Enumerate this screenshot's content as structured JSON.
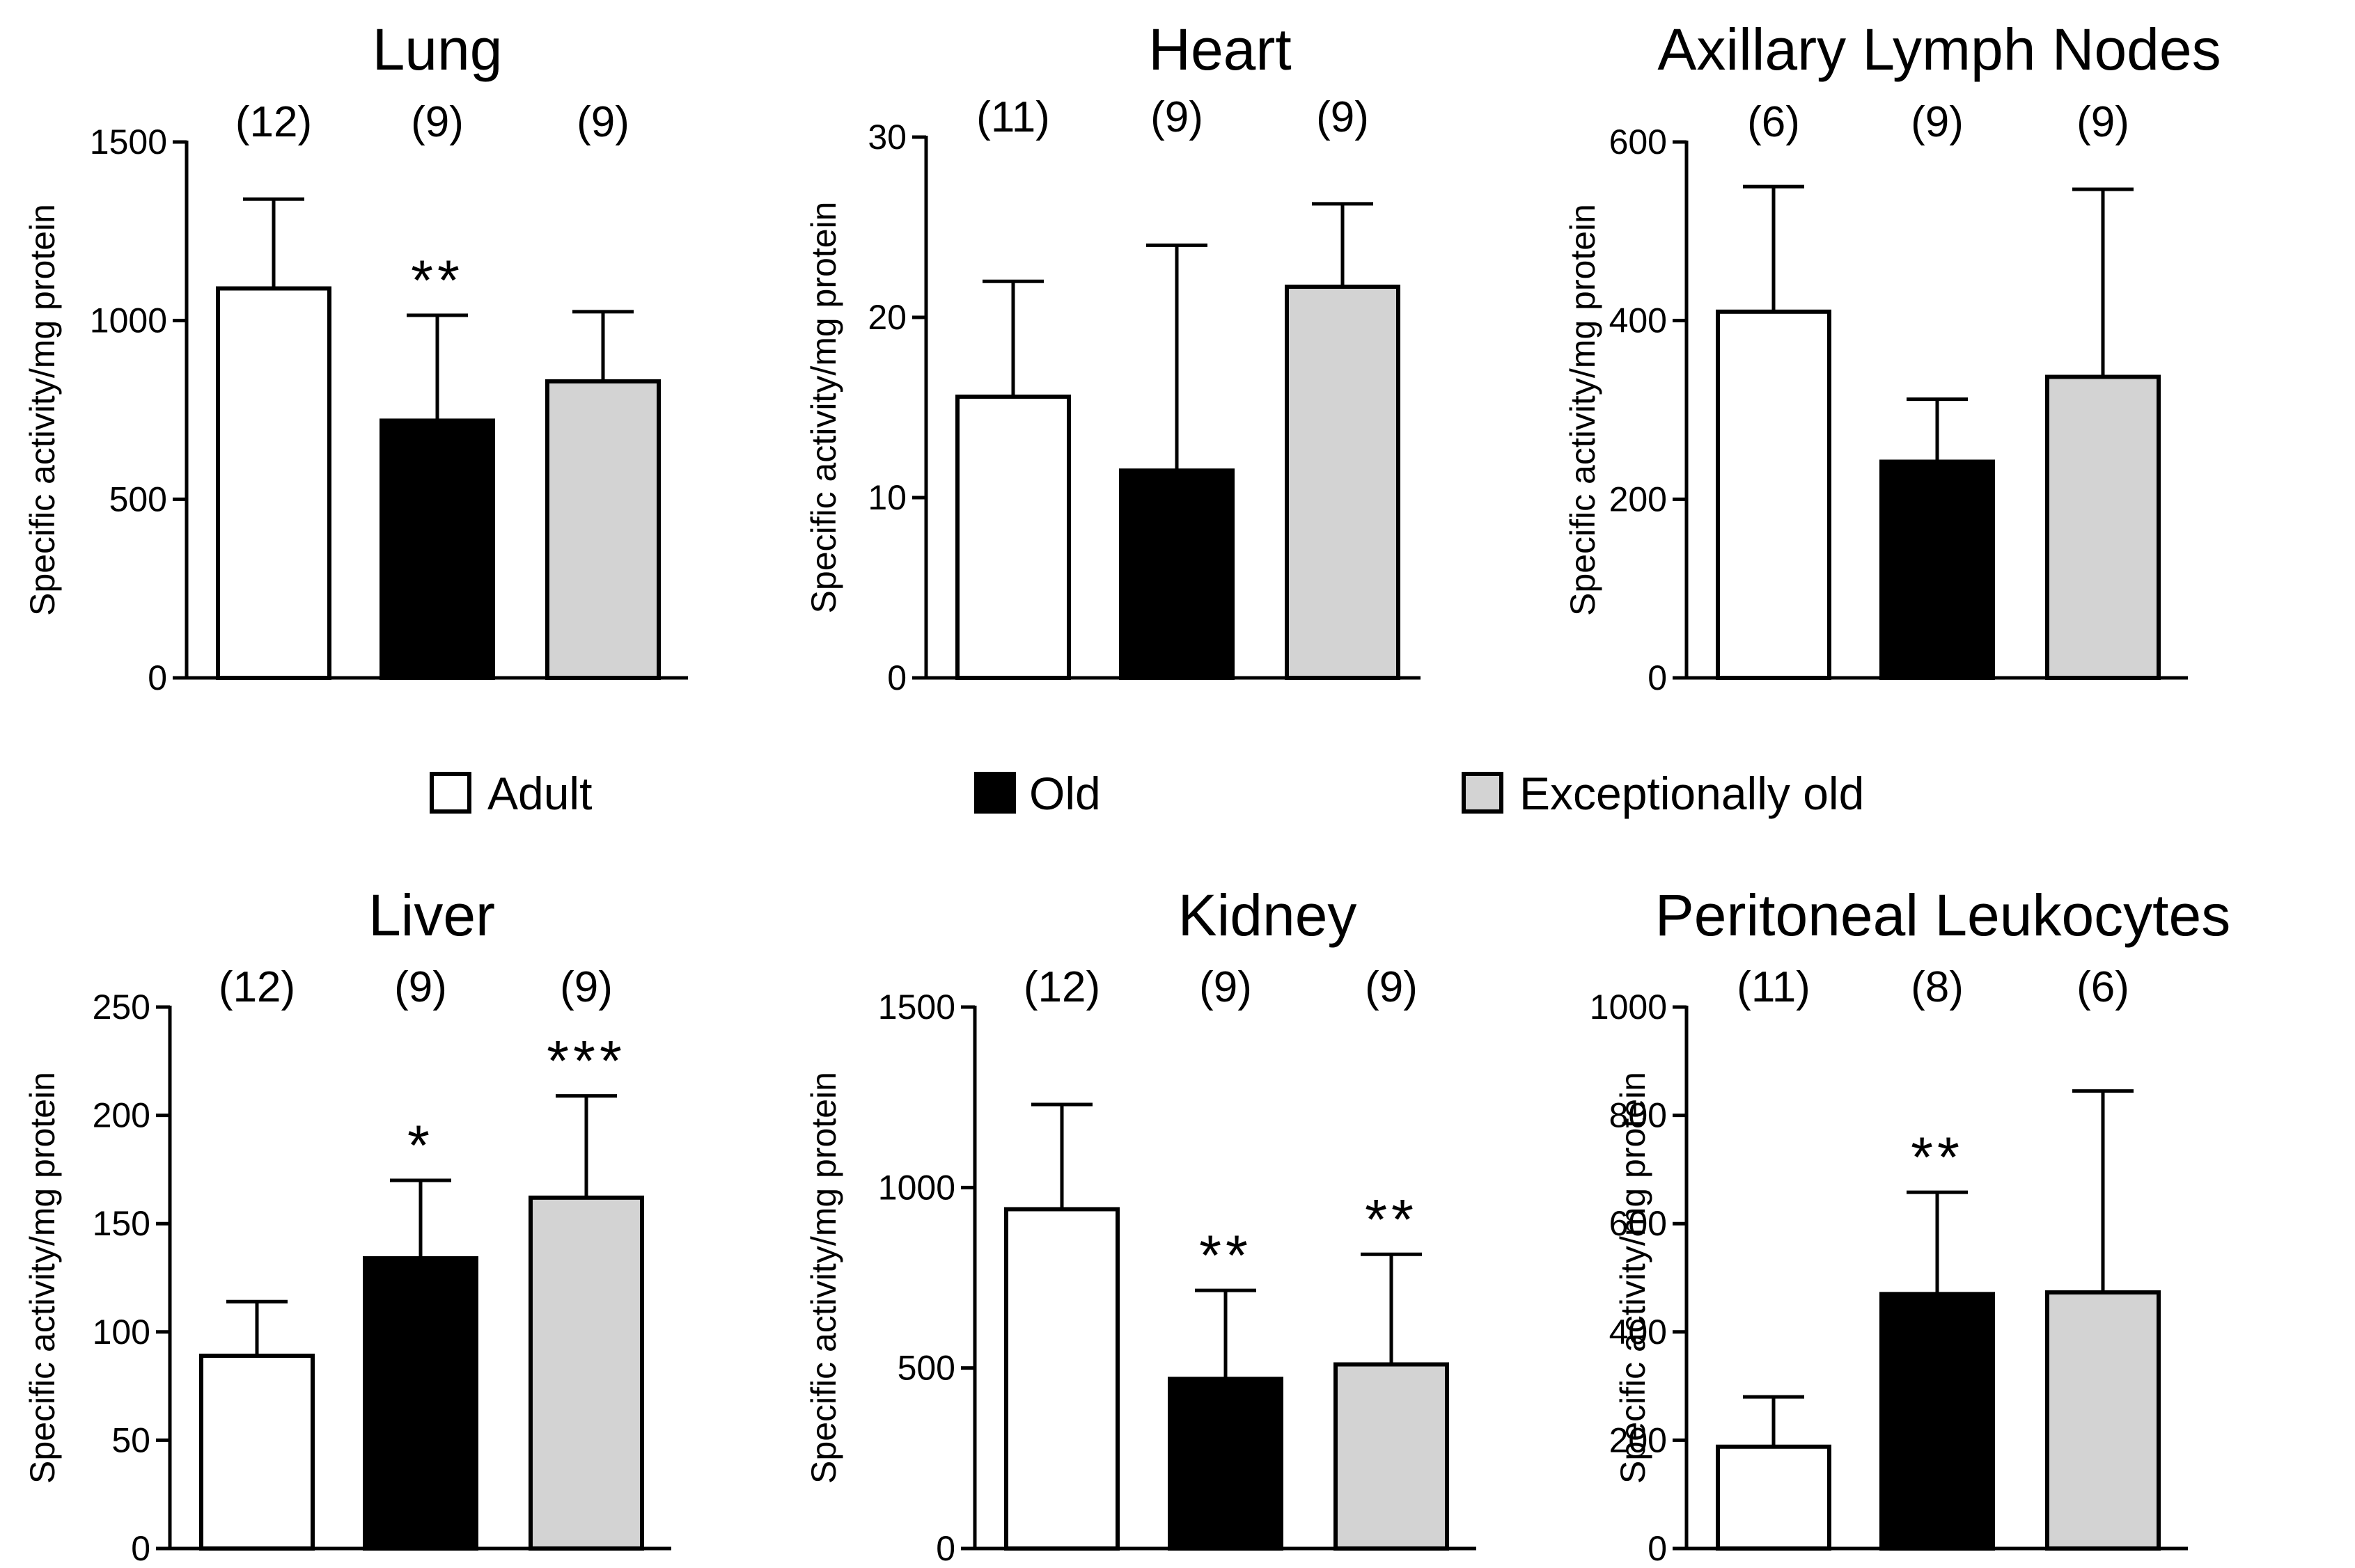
{
  "colors": {
    "adult": "#ffffff",
    "old": "#000000",
    "exceptionally_old": "#d3d3d3",
    "stroke": "#000000"
  },
  "legend": [
    {
      "label": "Adult",
      "color": "#ffffff"
    },
    {
      "label": "Old",
      "color": "#000000"
    },
    {
      "label": "Exceptionally old",
      "color": "#d3d3d3"
    }
  ],
  "chart_data": [
    {
      "type": "bar",
      "title": "Lung",
      "ylabel": "Specific activity/mg protein",
      "ylim": [
        0,
        1500
      ],
      "yticks": [
        0,
        500,
        1000,
        1500
      ],
      "categories": [
        "Adult",
        "Old",
        "Exceptionally old"
      ],
      "values": [
        1090,
        720,
        830
      ],
      "errors": [
        250,
        295,
        195
      ],
      "n": [
        "(12)",
        "(9)",
        "(9)"
      ],
      "significance": [
        "",
        "**",
        ""
      ]
    },
    {
      "type": "bar",
      "title": "Heart",
      "ylabel": "Specific activity/mg protein",
      "ylim": [
        0,
        30
      ],
      "yticks": [
        0,
        10,
        20,
        30
      ],
      "categories": [
        "Adult",
        "Old",
        "Exceptionally old"
      ],
      "values": [
        15.6,
        11.5,
        21.7
      ],
      "errors": [
        6.4,
        12.5,
        4.6
      ],
      "n": [
        "(11)",
        "(9)",
        "(9)"
      ],
      "significance": [
        "",
        "",
        ""
      ]
    },
    {
      "type": "bar",
      "title": "Axillary Lymph Nodes",
      "ylabel": "Specific activity/mg protein",
      "ylim": [
        0,
        600
      ],
      "yticks": [
        0,
        200,
        400,
        600
      ],
      "categories": [
        "Adult",
        "Old",
        "Exceptionally old"
      ],
      "values": [
        410,
        242,
        337
      ],
      "errors": [
        140,
        70,
        210
      ],
      "n": [
        "(6)",
        "(9)",
        "(9)"
      ],
      "significance": [
        "",
        "",
        ""
      ]
    },
    {
      "type": "bar",
      "title": "Liver",
      "ylabel": "Specific activity/mg protein",
      "ylim": [
        0,
        250
      ],
      "yticks": [
        0,
        50,
        100,
        150,
        200,
        250
      ],
      "categories": [
        "Adult",
        "Old",
        "Exceptionally old"
      ],
      "values": [
        89,
        134,
        162
      ],
      "errors": [
        25,
        36,
        47
      ],
      "n": [
        "(12)",
        "(9)",
        "(9)"
      ],
      "significance": [
        "",
        "*",
        "***"
      ]
    },
    {
      "type": "bar",
      "title": "Kidney",
      "ylabel": "Specific activity/mg protein",
      "ylim": [
        0,
        1500
      ],
      "yticks": [
        0,
        500,
        1000,
        1500
      ],
      "categories": [
        "Adult",
        "Old",
        "Exceptionally old"
      ],
      "values": [
        940,
        470,
        510
      ],
      "errors": [
        290,
        245,
        305
      ],
      "n": [
        "(12)",
        "(9)",
        "(9)"
      ],
      "significance": [
        "",
        "**",
        "**"
      ]
    },
    {
      "type": "bar",
      "title": "Peritoneal Leukocytes",
      "ylabel": "Specific activity/mg protein",
      "ylim": [
        0,
        1000
      ],
      "yticks": [
        0,
        200,
        400,
        600,
        800,
        1000
      ],
      "categories": [
        "Adult",
        "Old",
        "Exceptionally old"
      ],
      "values": [
        188,
        470,
        473
      ],
      "errors": [
        92,
        188,
        372
      ],
      "n": [
        "(11)",
        "(8)",
        "(6)"
      ],
      "significance": [
        "",
        "**",
        ""
      ]
    }
  ]
}
